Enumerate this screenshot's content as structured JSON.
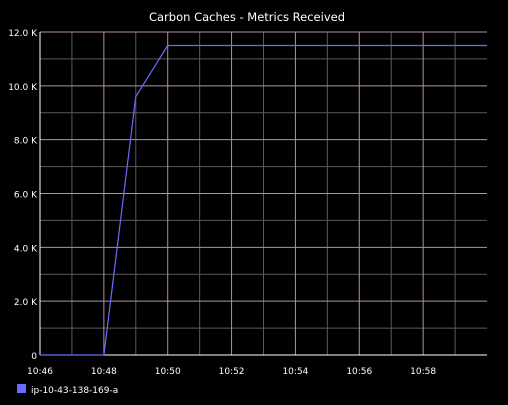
{
  "chart_data": {
    "type": "line",
    "title": "Carbon Caches - Metrics Received",
    "xlabel": "",
    "ylabel": "",
    "x_tick_labels": [
      "10:46",
      "10:48",
      "10:50",
      "10:52",
      "10:54",
      "10:56",
      "10:58"
    ],
    "x_range_minutes": [
      0,
      14
    ],
    "y_tick_values": [
      0,
      2000,
      4000,
      6000,
      8000,
      10000,
      12000
    ],
    "y_tick_labels": [
      "0",
      "2.0 K",
      "4.0 K",
      "6.0 K",
      "8.0 K",
      "10.0 K",
      "12.0 K"
    ],
    "ylim": [
      0,
      12000
    ],
    "grid": true,
    "legend_position": "bottom-left",
    "series": [
      {
        "name": "ip-10-43-138-169-a",
        "color": "#6b6bff",
        "points": [
          {
            "x": "10:46",
            "y": 0
          },
          {
            "x": "10:47",
            "y": 0
          },
          {
            "x": "10:48",
            "y": 0
          },
          {
            "x": "10:49",
            "y": 9600
          },
          {
            "x": "10:50",
            "y": 11500
          },
          {
            "x": "10:51",
            "y": 11500
          },
          {
            "x": "10:52",
            "y": 11500
          },
          {
            "x": "10:53",
            "y": 11500
          },
          {
            "x": "10:54",
            "y": 11500
          },
          {
            "x": "10:55",
            "y": 11500
          },
          {
            "x": "10:56",
            "y": 11500
          },
          {
            "x": "10:57",
            "y": 11500
          },
          {
            "x": "10:58",
            "y": 11500
          },
          {
            "x": "10:59",
            "y": 11500
          },
          {
            "x": "11:00",
            "y": 11500
          }
        ]
      }
    ],
    "colors": {
      "background": "#000000",
      "axis": "#ffffff",
      "major_grid": "#b58fa5",
      "minor_grid": "#5a5a5a",
      "text": "#ffffff"
    }
  }
}
